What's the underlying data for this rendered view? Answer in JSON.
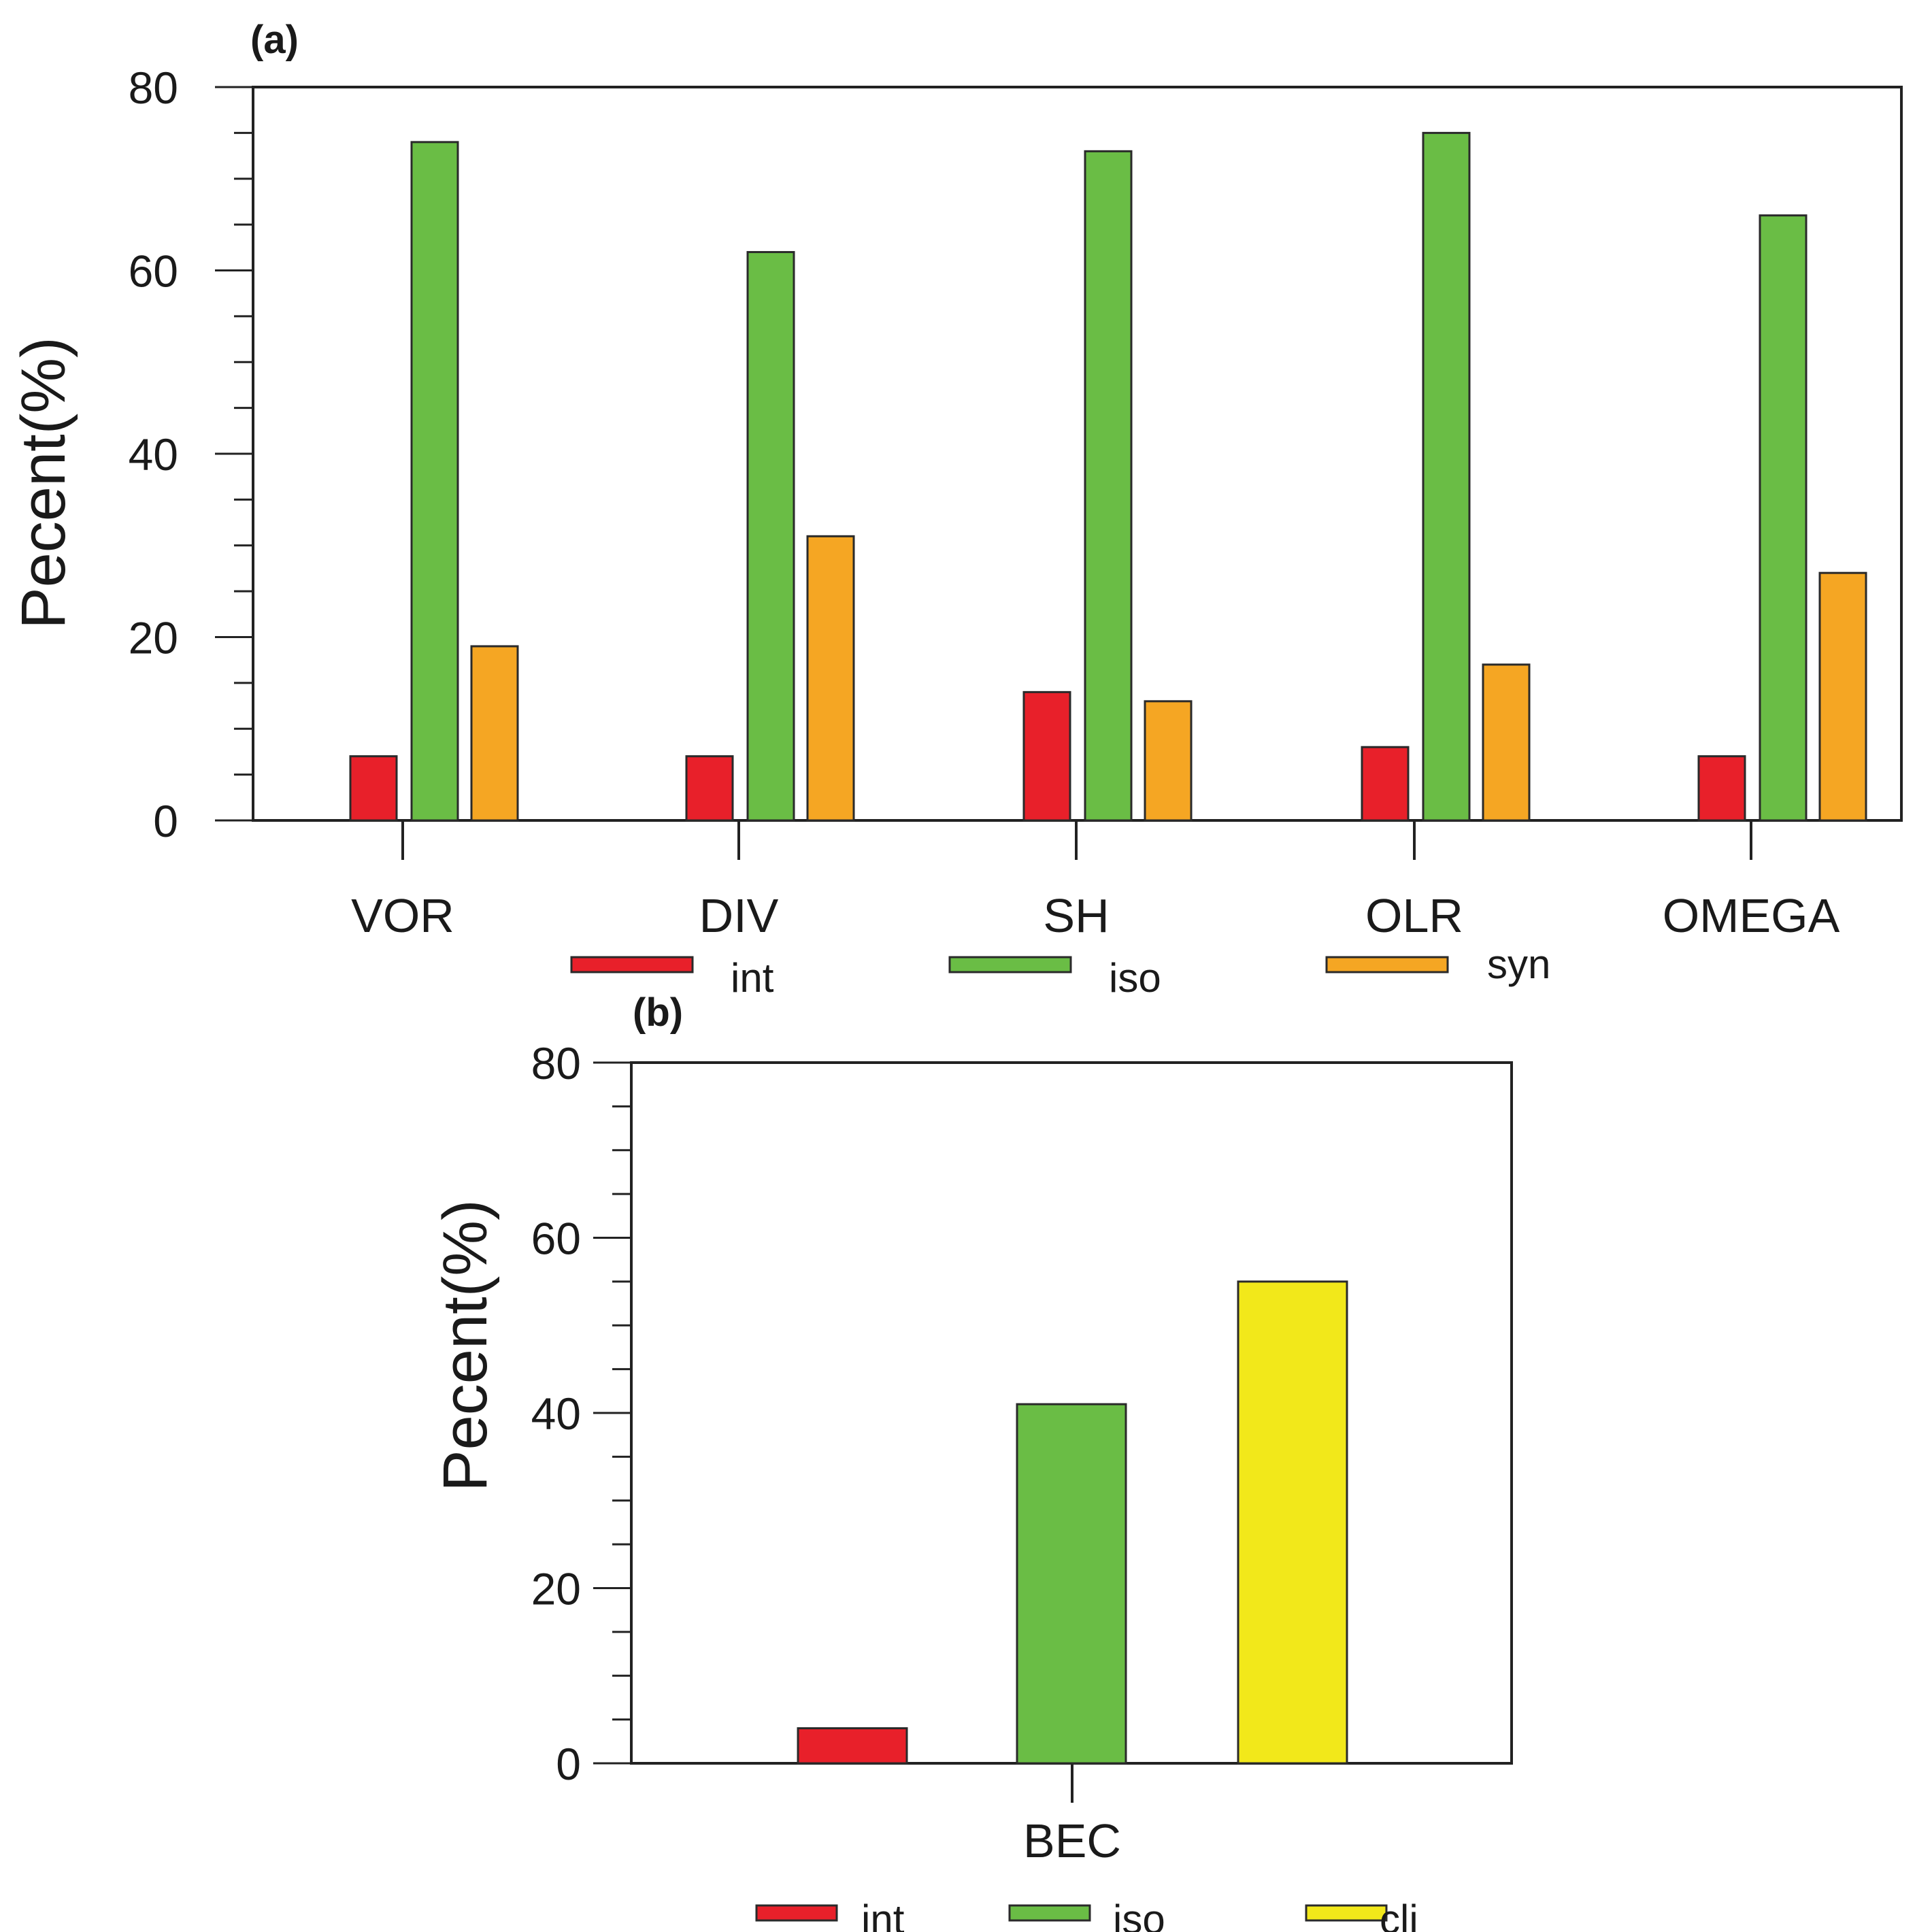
{
  "colors": {
    "int": "#e8202a",
    "iso": "#6abd45",
    "syn": "#f5a623",
    "cli": "#f2e81a",
    "axis": "#222222"
  },
  "chart_data": [
    {
      "panel": "(a)",
      "type": "bar",
      "ylabel": "Pecent(%)",
      "xlabel": "",
      "ylim": [
        0,
        80
      ],
      "yticks": [
        0,
        20,
        40,
        60,
        80
      ],
      "categories": [
        "VOR",
        "DIV",
        "SH",
        "OLR",
        "OMEGA"
      ],
      "series": [
        {
          "name": "int",
          "values": [
            7,
            7,
            14,
            8,
            7
          ]
        },
        {
          "name": "iso",
          "values": [
            74,
            62,
            73,
            75,
            66
          ]
        },
        {
          "name": "syn",
          "values": [
            19,
            31,
            13,
            17,
            27
          ]
        }
      ],
      "legend": {
        "position": "bottom-center",
        "items": [
          "int",
          "iso",
          "syn"
        ]
      }
    },
    {
      "panel": "(b)",
      "type": "bar",
      "ylabel": "Pecent(%)",
      "xlabel": "",
      "ylim": [
        0,
        80
      ],
      "yticks": [
        0,
        20,
        40,
        60,
        80
      ],
      "categories": [
        "BEC"
      ],
      "series": [
        {
          "name": "int",
          "values": [
            4
          ]
        },
        {
          "name": "iso",
          "values": [
            41
          ]
        },
        {
          "name": "cli",
          "values": [
            55
          ]
        }
      ],
      "legend": {
        "position": "bottom-center",
        "items": [
          "int",
          "iso",
          "cli"
        ]
      }
    }
  ]
}
